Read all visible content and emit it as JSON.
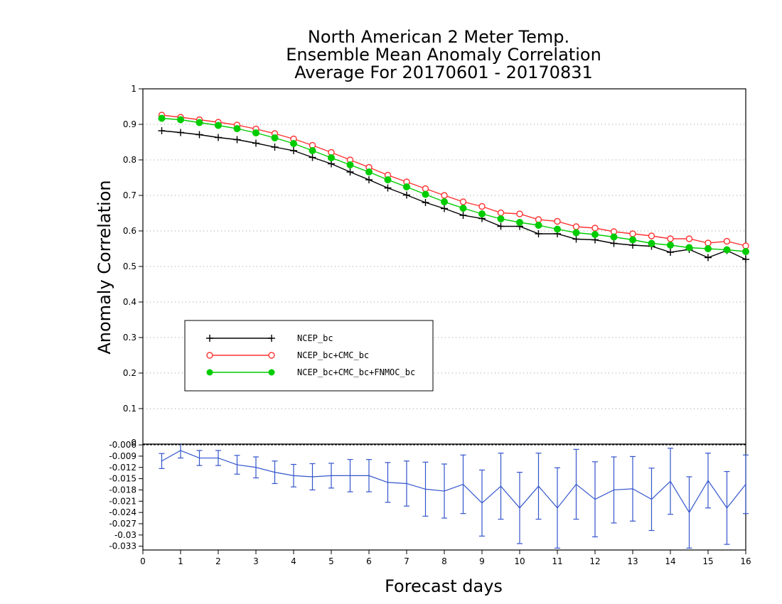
{
  "title_lines": [
    "North American 2 Meter Temp.",
    "Ensemble Mean Anomaly Correlation",
    "Average For 20170601 - 20170831"
  ],
  "chart_data": [
    {
      "type": "line",
      "panel": "main",
      "xlabel": "Forecast days",
      "ylabel": "Anomaly Correlation",
      "xlim": [
        0,
        16
      ],
      "ylim": [
        0,
        1
      ],
      "x": [
        0.5,
        1,
        1.5,
        2,
        2.5,
        3,
        3.5,
        4,
        4.5,
        5,
        5.5,
        6,
        6.5,
        7,
        7.5,
        8,
        8.5,
        9,
        9.5,
        10,
        10.5,
        11,
        11.5,
        12,
        12.5,
        13,
        13.5,
        14,
        14.5,
        15,
        15.5,
        16
      ],
      "xticks": [
        "0",
        "1",
        "2",
        "3",
        "4",
        "5",
        "6",
        "7",
        "8",
        "9",
        "10",
        "11",
        "12",
        "13",
        "14",
        "15",
        "16"
      ],
      "yticks": [
        "0.1",
        "0.2",
        "0.3",
        "0.4",
        "0.5",
        "0.6",
        "0.7",
        "0.8",
        "0.9",
        "1"
      ],
      "grid": "horizontal dotted",
      "legend_position": "lower-left",
      "series": [
        {
          "name": "NCEP_bc",
          "color": "#000000",
          "marker": "plus",
          "values": [
            0.882,
            0.877,
            0.871,
            0.863,
            0.857,
            0.847,
            0.836,
            0.826,
            0.807,
            0.789,
            0.766,
            0.744,
            0.721,
            0.701,
            0.68,
            0.663,
            0.644,
            0.635,
            0.613,
            0.613,
            0.592,
            0.592,
            0.577,
            0.575,
            0.565,
            0.56,
            0.557,
            0.54,
            0.548,
            0.525,
            0.545,
            0.52
          ]
        },
        {
          "name": "NCEP_bc+CMC_bc",
          "color": "#ff3333",
          "marker": "open-circle",
          "values": [
            0.926,
            0.92,
            0.913,
            0.906,
            0.898,
            0.887,
            0.874,
            0.859,
            0.841,
            0.821,
            0.8,
            0.779,
            0.757,
            0.738,
            0.719,
            0.7,
            0.682,
            0.669,
            0.651,
            0.648,
            0.632,
            0.627,
            0.612,
            0.608,
            0.598,
            0.592,
            0.586,
            0.578,
            0.578,
            0.566,
            0.571,
            0.558
          ]
        },
        {
          "name": "NCEP_bc+CMC_bc+FNMOC_bc",
          "color": "#00cc00",
          "marker": "filled-circle",
          "values": [
            0.917,
            0.913,
            0.905,
            0.897,
            0.888,
            0.876,
            0.862,
            0.846,
            0.826,
            0.806,
            0.786,
            0.766,
            0.744,
            0.724,
            0.703,
            0.682,
            0.664,
            0.648,
            0.634,
            0.624,
            0.616,
            0.605,
            0.595,
            0.59,
            0.583,
            0.575,
            0.565,
            0.56,
            0.553,
            0.55,
            0.547,
            0.542
          ]
        }
      ]
    },
    {
      "type": "line",
      "panel": "difference",
      "xlim": [
        0,
        16
      ],
      "ylim": [
        -0.034,
        -0.0058
      ],
      "yticks": [
        "-0.006",
        "-0.009",
        "-0.012",
        "-0.015",
        "-0.018",
        "-0.021",
        "-0.024",
        "-0.027",
        "-0.03",
        "-0.033"
      ],
      "series": [
        {
          "color": "#3355cc",
          "marker": "error-bar",
          "values": [
            -0.0103,
            -0.0075,
            -0.0095,
            -0.0095,
            -0.0113,
            -0.012,
            -0.0133,
            -0.0142,
            -0.0145,
            -0.0142,
            -0.0142,
            -0.0142,
            -0.016,
            -0.0163,
            -0.0178,
            -0.0183,
            -0.0165,
            -0.0215,
            -0.017,
            -0.0228,
            -0.017,
            -0.0228,
            -0.0165,
            -0.0205,
            -0.018,
            -0.0177,
            -0.0205,
            -0.0157,
            -0.024,
            -0.0155,
            -0.0228,
            -0.0165
          ],
          "err_low": [
            -0.0123,
            -0.0095,
            -0.0115,
            -0.0115,
            -0.0138,
            -0.0148,
            -0.0163,
            -0.0172,
            -0.018,
            -0.0175,
            -0.0185,
            -0.0185,
            -0.0213,
            -0.0223,
            -0.025,
            -0.0255,
            -0.0243,
            -0.0303,
            -0.0258,
            -0.0323,
            -0.0258,
            -0.0335,
            -0.0258,
            -0.0305,
            -0.0268,
            -0.0263,
            -0.0288,
            -0.0245,
            -0.0335,
            -0.0228,
            -0.0325,
            -0.0243
          ],
          "err_high": [
            -0.0083,
            -0.0055,
            -0.0075,
            -0.0075,
            -0.0088,
            -0.0092,
            -0.0103,
            -0.0112,
            -0.011,
            -0.0109,
            -0.0099,
            -0.0099,
            -0.0107,
            -0.0103,
            -0.0106,
            -0.0111,
            -0.0087,
            -0.0127,
            -0.0082,
            -0.0133,
            -0.0082,
            -0.0121,
            -0.0072,
            -0.0105,
            -0.0092,
            -0.0091,
            -0.0122,
            -0.0069,
            -0.0145,
            -0.0082,
            -0.0131,
            -0.0087
          ]
        }
      ]
    }
  ]
}
